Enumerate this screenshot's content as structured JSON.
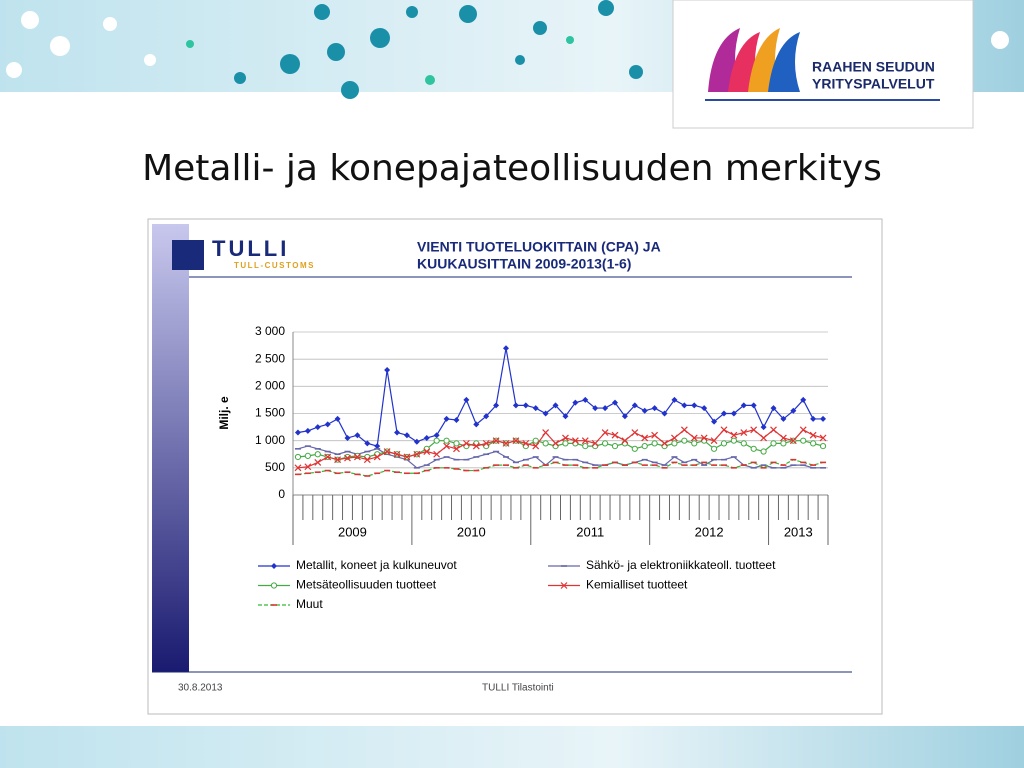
{
  "slide_title": "Metalli- ja konepajateollisuuden merkitys",
  "logo": {
    "line1": "RAAHEN SEUDUN",
    "line2": "YRITYSPALVELUT"
  },
  "source_logo": {
    "name": "TULLI",
    "sub": "TULL-CUSTOMS"
  },
  "footer": {
    "date": "30.8.2013",
    "source": "TULLI Tilastointi"
  },
  "chart_data": {
    "type": "line",
    "title": [
      "VIENTI TUOTELUOKITTAIN (CPA) JA",
      "KUUKAUSITTAIN 2009-2013(1-6)"
    ],
    "y_label": "Milj. e",
    "categories": [
      "2009",
      "2009",
      "2009",
      "2009",
      "2009",
      "2009",
      "2009",
      "2009",
      "2009",
      "2009",
      "2009",
      "2009",
      "2010",
      "2010",
      "2010",
      "2010",
      "2010",
      "2010",
      "2010",
      "2010",
      "2010",
      "2010",
      "2010",
      "2010",
      "2011",
      "2011",
      "2011",
      "2011",
      "2011",
      "2011",
      "2011",
      "2011",
      "2011",
      "2011",
      "2011",
      "2011",
      "2012",
      "2012",
      "2012",
      "2012",
      "2012",
      "2012",
      "2012",
      "2012",
      "2012",
      "2012",
      "2012",
      "2012",
      "2013",
      "2013",
      "2013",
      "2013",
      "2013",
      "2013"
    ],
    "ylim": [
      0,
      3000
    ],
    "yticks": [
      0,
      500,
      {
        "value": 1000,
        "label": "1 000"
      },
      {
        "value": 1500,
        "label": "1 500"
      },
      {
        "value": 2000,
        "label": "2 000"
      },
      {
        "value": 2500,
        "label": "2 500"
      },
      {
        "value": 3000,
        "label": "3 000"
      }
    ],
    "grid": true,
    "series": [
      {
        "name": "Metallit, koneet ja kulkuneuvot",
        "color": "#2233cc",
        "marker": "diamond",
        "values": [
          1150,
          1180,
          1250,
          1300,
          1400,
          1050,
          1100,
          950,
          900,
          2300,
          1150,
          1100,
          980,
          1050,
          1100,
          1400,
          1380,
          1750,
          1300,
          1450,
          1650,
          2700,
          1650,
          1650,
          1600,
          1500,
          1650,
          1450,
          1700,
          1750,
          1600,
          1600,
          1700,
          1450,
          1650,
          1550,
          1600,
          1500,
          1750,
          1650,
          1650,
          1600,
          1350,
          1500,
          1500,
          1650,
          1650,
          1250,
          1600,
          1400,
          1550,
          1750,
          1400,
          1400
        ]
      },
      {
        "name": "Sähkö- ja elektroniikkateoll. tuotteet",
        "color": "#6666aa",
        "marker": "dash",
        "values": [
          850,
          900,
          850,
          800,
          750,
          800,
          750,
          800,
          850,
          750,
          700,
          650,
          500,
          550,
          650,
          700,
          650,
          650,
          700,
          750,
          800,
          700,
          600,
          650,
          700,
          550,
          700,
          650,
          650,
          600,
          550,
          550,
          600,
          550,
          600,
          650,
          600,
          550,
          700,
          600,
          650,
          550,
          650,
          650,
          700,
          550,
          500,
          550,
          500,
          500,
          550,
          550,
          500,
          500
        ]
      },
      {
        "name": "Metsäteollisuuden tuotteet",
        "color": "#44aa44",
        "marker": "circle",
        "values": [
          700,
          720,
          750,
          700,
          650,
          700,
          720,
          700,
          750,
          800,
          750,
          700,
          750,
          850,
          1000,
          1000,
          950,
          900,
          950,
          900,
          1000,
          950,
          1000,
          900,
          1000,
          950,
          900,
          950,
          950,
          900,
          900,
          950,
          900,
          950,
          850,
          900,
          950,
          900,
          950,
          1000,
          950,
          1000,
          850,
          950,
          1000,
          950,
          850,
          800,
          950,
          950,
          1000,
          1000,
          950,
          900
        ]
      },
      {
        "name": "Kemialliset tuotteet",
        "color": "#e03333",
        "marker": "x",
        "values": [
          500,
          520,
          600,
          700,
          650,
          680,
          700,
          650,
          700,
          800,
          750,
          700,
          750,
          800,
          750,
          900,
          850,
          950,
          900,
          950,
          1000,
          950,
          1000,
          950,
          900,
          1150,
          950,
          1050,
          1000,
          1000,
          950,
          1150,
          1100,
          1000,
          1150,
          1050,
          1100,
          950,
          1050,
          1200,
          1050,
          1050,
          1000,
          1200,
          1100,
          1150,
          1200,
          1050,
          1200,
          1050,
          1000,
          1200,
          1100,
          1050
        ]
      },
      {
        "name": "Muut",
        "color": "#33bb33",
        "marker": "dash",
        "marker_color": "#dd3333",
        "dashed": true,
        "values": [
          380,
          400,
          420,
          450,
          400,
          420,
          380,
          350,
          400,
          450,
          420,
          400,
          400,
          450,
          500,
          500,
          480,
          450,
          450,
          500,
          550,
          550,
          500,
          550,
          500,
          550,
          600,
          550,
          550,
          500,
          500,
          550,
          600,
          550,
          600,
          550,
          550,
          500,
          600,
          550,
          550,
          600,
          550,
          550,
          500,
          550,
          600,
          500,
          600,
          550,
          650,
          600,
          550,
          600
        ]
      }
    ]
  }
}
